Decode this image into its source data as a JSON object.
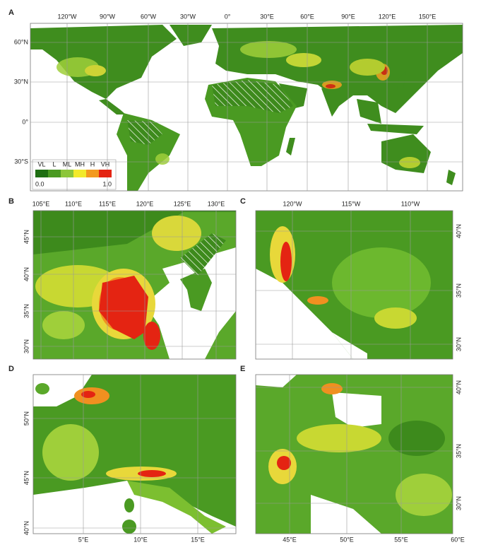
{
  "panels": [
    {
      "label": "A",
      "x_labels": [
        "120°W",
        "90°W",
        "60°W",
        "30°W",
        "0°",
        "30°E",
        "60°E",
        "90°E",
        "120°E",
        "150°E"
      ],
      "y_labels": [
        "60°N",
        "30°N",
        "0°",
        "30°S"
      ],
      "legend": {
        "classes": [
          "VL",
          "L",
          "ML",
          "MH",
          "H",
          "VH"
        ],
        "min": "0.0",
        "max": "1.0"
      }
    },
    {
      "label": "B",
      "x_labels": [
        "105°E",
        "110°E",
        "115°E",
        "120°E",
        "125°E",
        "130°E"
      ],
      "y_labels": [
        "45°N",
        "40°N",
        "35°N",
        "30°N"
      ]
    },
    {
      "label": "C",
      "x_labels": [
        "120°W",
        "115°W",
        "110°W"
      ],
      "y_labels": [
        "40°N",
        "35°N",
        "30°N"
      ]
    },
    {
      "label": "D",
      "x_labels": [
        "5°E",
        "10°E",
        "15°E"
      ],
      "y_labels": [
        "50°N",
        "45°N",
        "40°N"
      ]
    },
    {
      "label": "E",
      "x_labels": [
        "45°E",
        "50°E",
        "55°E",
        "60°E"
      ],
      "y_labels": [
        "40°N",
        "35°N",
        "30°N"
      ]
    }
  ]
}
